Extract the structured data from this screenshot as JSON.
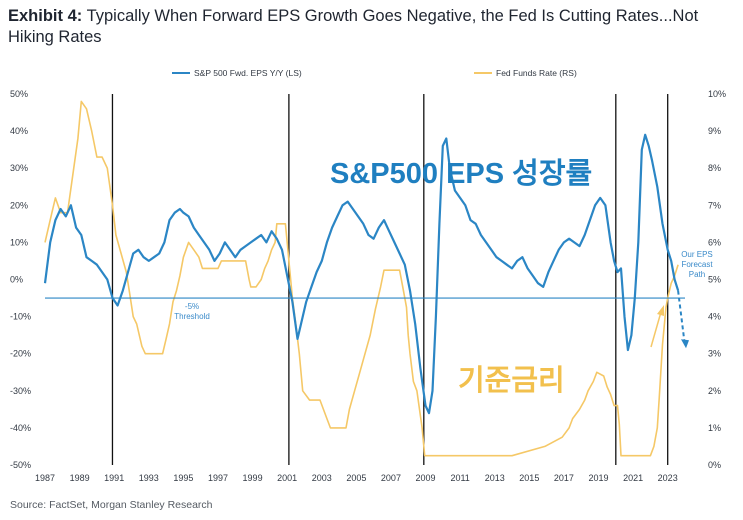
{
  "title": {
    "label": "Exhibit 4:",
    "text": "Typically When Forward EPS Growth Goes Negative, the Fed Is Cutting Rates...Not Hiking Rates"
  },
  "source": "Source: FactSet, Morgan Stanley Research",
  "overlay_text": {
    "eps_label": "S&P500 EPS 성장률",
    "rate_label": "기준금리"
  },
  "colors": {
    "eps": "#2b86c5",
    "rate": "#f5c867",
    "recession": "#111111",
    "threshold": "#2b86c5",
    "overlay_eps": "#1f7fc0",
    "overlay_rate": "#f2c04d"
  },
  "chart_data": {
    "type": "line",
    "title": "",
    "legend": [
      "S&P 500 Fwd. EPS Y/Y (LS)",
      "Fed Funds Rate (RS)"
    ],
    "legend_position": "top",
    "x_ticks": [
      "1987",
      "1989",
      "1991",
      "1993",
      "1995",
      "1997",
      "1999",
      "2001",
      "2003",
      "2005",
      "2007",
      "2009",
      "2011",
      "2013",
      "2015",
      "2017",
      "2019",
      "2021",
      "2023"
    ],
    "xlim": [
      1987,
      2024
    ],
    "left_axis": {
      "ticks": [
        "50%",
        "40%",
        "30%",
        "20%",
        "10%",
        "0%",
        "-10%",
        "-20%",
        "-30%",
        "-40%",
        "-50%"
      ],
      "ylim": [
        -50,
        50
      ]
    },
    "right_axis": {
      "ticks": [
        "10%",
        "9%",
        "8%",
        "7%",
        "6%",
        "5%",
        "4%",
        "3%",
        "2%",
        "1%",
        "0%"
      ],
      "ylim": [
        0,
        10
      ]
    },
    "grid": false,
    "vertical_lines": [
      1990.9,
      2001.1,
      2008.9,
      2020.0,
      2023.0
    ],
    "threshold": {
      "value": -5,
      "label": [
        "-5%",
        "Threshold"
      ]
    },
    "forecast_label": [
      "Our EPS",
      "Forecast",
      "Path"
    ],
    "series": [
      {
        "name": "S&P 500 Fwd. EPS Y/Y (LS)",
        "axis": "left",
        "x": [
          1987.0,
          1987.3,
          1987.6,
          1987.9,
          1988.2,
          1988.5,
          1988.8,
          1989.1,
          1989.4,
          1989.7,
          1990.0,
          1990.3,
          1990.6,
          1990.9,
          1991.2,
          1991.5,
          1991.8,
          1992.1,
          1992.4,
          1992.7,
          1993.0,
          1993.3,
          1993.6,
          1993.9,
          1994.2,
          1994.5,
          1994.8,
          1995.0,
          1995.3,
          1995.6,
          1995.9,
          1996.2,
          1996.5,
          1996.8,
          1997.1,
          1997.4,
          1997.7,
          1998.0,
          1998.3,
          1998.6,
          1998.9,
          1999.2,
          1999.5,
          1999.8,
          2000.1,
          2000.4,
          2000.7,
          2001.0,
          2001.3,
          2001.6,
          2001.8,
          2002.1,
          2002.4,
          2002.7,
          2003.0,
          2003.3,
          2003.6,
          2003.9,
          2004.2,
          2004.5,
          2004.8,
          2005.1,
          2005.4,
          2005.7,
          2006.0,
          2006.3,
          2006.6,
          2006.9,
          2007.2,
          2007.5,
          2007.8,
          2008.1,
          2008.4,
          2008.7,
          2009.0,
          2009.2,
          2009.4,
          2009.6,
          2009.8,
          2010.0,
          2010.2,
          2010.4,
          2010.7,
          2011.0,
          2011.3,
          2011.6,
          2011.9,
          2012.2,
          2012.5,
          2012.8,
          2013.1,
          2013.4,
          2013.7,
          2014.0,
          2014.3,
          2014.6,
          2014.9,
          2015.2,
          2015.5,
          2015.8,
          2016.1,
          2016.4,
          2016.7,
          2017.0,
          2017.3,
          2017.6,
          2017.9,
          2018.2,
          2018.5,
          2018.8,
          2019.1,
          2019.4,
          2019.7,
          2019.9,
          2020.1,
          2020.3,
          2020.5,
          2020.7,
          2020.9,
          2021.1,
          2021.3,
          2021.5,
          2021.7,
          2021.9,
          2022.1,
          2022.4,
          2022.7,
          2023.0,
          2023.2,
          2023.4,
          2023.6
        ],
        "values": [
          -1,
          10,
          16,
          19,
          17,
          20,
          14,
          12,
          6,
          5,
          4,
          2,
          0,
          -5,
          -7,
          -3,
          2,
          7,
          8,
          6,
          5,
          6,
          7,
          10,
          16,
          18,
          19,
          18,
          17,
          14,
          12,
          10,
          8,
          5,
          7,
          10,
          8,
          6,
          8,
          9,
          10,
          11,
          12,
          10,
          13,
          11,
          8,
          1,
          -6,
          -16,
          -12,
          -6,
          -2,
          2,
          5,
          10,
          14,
          17,
          20,
          21,
          19,
          17,
          15,
          12,
          11,
          14,
          16,
          13,
          10,
          7,
          4,
          -3,
          -12,
          -24,
          -34,
          -36,
          -30,
          -10,
          15,
          36,
          38,
          30,
          24,
          22,
          20,
          16,
          15,
          12,
          10,
          8,
          6,
          5,
          4,
          3,
          5,
          6,
          3,
          1,
          -1,
          -2,
          2,
          5,
          8,
          10,
          11,
          10,
          9,
          12,
          16,
          20,
          22,
          20,
          10,
          5,
          2,
          3,
          -10,
          -19,
          -15,
          -5,
          10,
          35,
          39,
          36,
          32,
          25,
          15,
          8,
          5,
          0,
          -3
        ],
        "forecast": {
          "x": [
            2023.6,
            2024.0
          ],
          "values": [
            -3,
            -18
          ]
        }
      },
      {
        "name": "Fed Funds Rate (RS)",
        "axis": "right",
        "x": [
          1987.0,
          1987.4,
          1987.6,
          1987.9,
          1988.3,
          1988.6,
          1988.9,
          1989.1,
          1989.4,
          1989.7,
          1990.0,
          1990.3,
          1990.6,
          1990.9,
          1991.1,
          1991.4,
          1991.7,
          1991.9,
          1992.1,
          1992.3,
          1992.6,
          1992.8,
          1993.3,
          1993.8,
          1994.0,
          1994.2,
          1994.4,
          1994.6,
          1994.8,
          1995.0,
          1995.3,
          1995.6,
          1995.9,
          1996.1,
          1996.5,
          1997.0,
          1997.2,
          1997.5,
          1998.0,
          1998.6,
          1998.8,
          1998.9,
          1999.2,
          1999.5,
          1999.7,
          1999.9,
          2000.1,
          2000.3,
          2000.4,
          2000.6,
          2000.9,
          2001.0,
          2001.1,
          2001.3,
          2001.5,
          2001.7,
          2001.9,
          2002.3,
          2002.9,
          2003.3,
          2003.5,
          2003.8,
          2004.4,
          2004.6,
          2004.9,
          2005.2,
          2005.5,
          2005.8,
          2006.1,
          2006.4,
          2006.6,
          2007.0,
          2007.5,
          2007.7,
          2007.9,
          2008.0,
          2008.1,
          2008.3,
          2008.5,
          2008.8,
          2008.95,
          2009.0,
          2010.0,
          2012.0,
          2014.0,
          2015.9,
          2016.9,
          2017.3,
          2017.5,
          2017.9,
          2018.2,
          2018.4,
          2018.7,
          2018.9,
          2019.3,
          2019.5,
          2019.7,
          2019.9,
          2020.1,
          2020.2,
          2020.3,
          2021.0,
          2022.0,
          2022.2,
          2022.4,
          2022.5,
          2022.6,
          2022.7,
          2022.9,
          2023.0,
          2023.2,
          2023.4,
          2023.6
        ],
        "values": [
          6.0,
          6.8,
          7.2,
          6.8,
          6.8,
          7.8,
          8.8,
          9.8,
          9.6,
          9.0,
          8.3,
          8.3,
          8.0,
          7.0,
          6.2,
          5.7,
          5.2,
          4.6,
          4.0,
          3.8,
          3.2,
          3.0,
          3.0,
          3.0,
          3.4,
          3.8,
          4.4,
          4.7,
          5.1,
          5.6,
          6.0,
          5.8,
          5.6,
          5.3,
          5.3,
          5.3,
          5.5,
          5.5,
          5.5,
          5.5,
          5.0,
          4.8,
          4.8,
          5.0,
          5.3,
          5.5,
          5.8,
          6.0,
          6.5,
          6.5,
          6.5,
          6.0,
          5.5,
          4.5,
          3.8,
          3.0,
          2.0,
          1.75,
          1.75,
          1.25,
          1.0,
          1.0,
          1.0,
          1.5,
          2.0,
          2.5,
          3.0,
          3.5,
          4.2,
          4.8,
          5.25,
          5.25,
          5.25,
          4.75,
          4.25,
          3.5,
          3.0,
          2.25,
          2.0,
          1.0,
          0.25,
          0.25,
          0.25,
          0.25,
          0.25,
          0.5,
          0.75,
          1.0,
          1.25,
          1.5,
          1.75,
          2.0,
          2.25,
          2.5,
          2.4,
          2.1,
          1.9,
          1.6,
          1.6,
          1.1,
          0.25,
          0.25,
          0.25,
          0.5,
          1.0,
          1.75,
          2.5,
          3.25,
          4.25,
          4.5,
          4.9,
          5.1,
          5.4
        ]
      }
    ]
  }
}
